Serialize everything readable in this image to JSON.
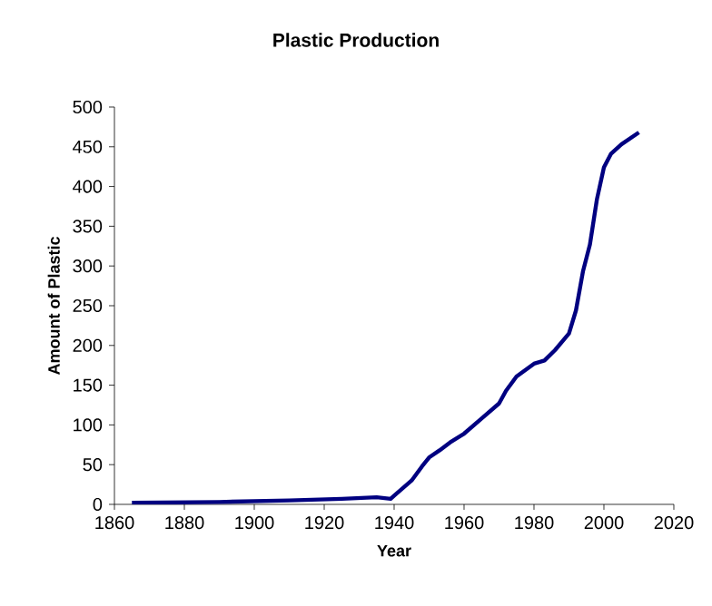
{
  "chart_data": {
    "type": "line",
    "title": "Plastic Production",
    "xlabel": "Year",
    "ylabel": "Amount of Plastic",
    "x": [
      1865,
      1890,
      1910,
      1925,
      1935,
      1939,
      1940,
      1945,
      1948,
      1950,
      1953,
      1956,
      1960,
      1965,
      1970,
      1972,
      1975,
      1980,
      1983,
      1986,
      1990,
      1992,
      1994,
      1996,
      1998,
      2000,
      2002,
      2005,
      2010
    ],
    "series": [
      {
        "color": "#000080",
        "values": [
          2,
          3,
          5,
          7,
          9,
          7,
          11,
          30,
          48,
          59,
          68,
          78,
          89,
          108,
          127,
          143,
          161,
          177,
          181,
          194,
          215,
          244,
          293,
          327,
          384,
          424,
          441,
          453,
          468
        ]
      }
    ],
    "xlim": [
      1860,
      2020
    ],
    "xticks": [
      1860,
      1880,
      1900,
      1920,
      1940,
      1960,
      1980,
      2000,
      2020
    ],
    "ylim": [
      0,
      500
    ],
    "yticks": [
      0,
      50,
      100,
      150,
      200,
      250,
      300,
      350,
      400,
      450,
      500
    ],
    "grid": false,
    "marker": "none",
    "line_style": "solid"
  }
}
